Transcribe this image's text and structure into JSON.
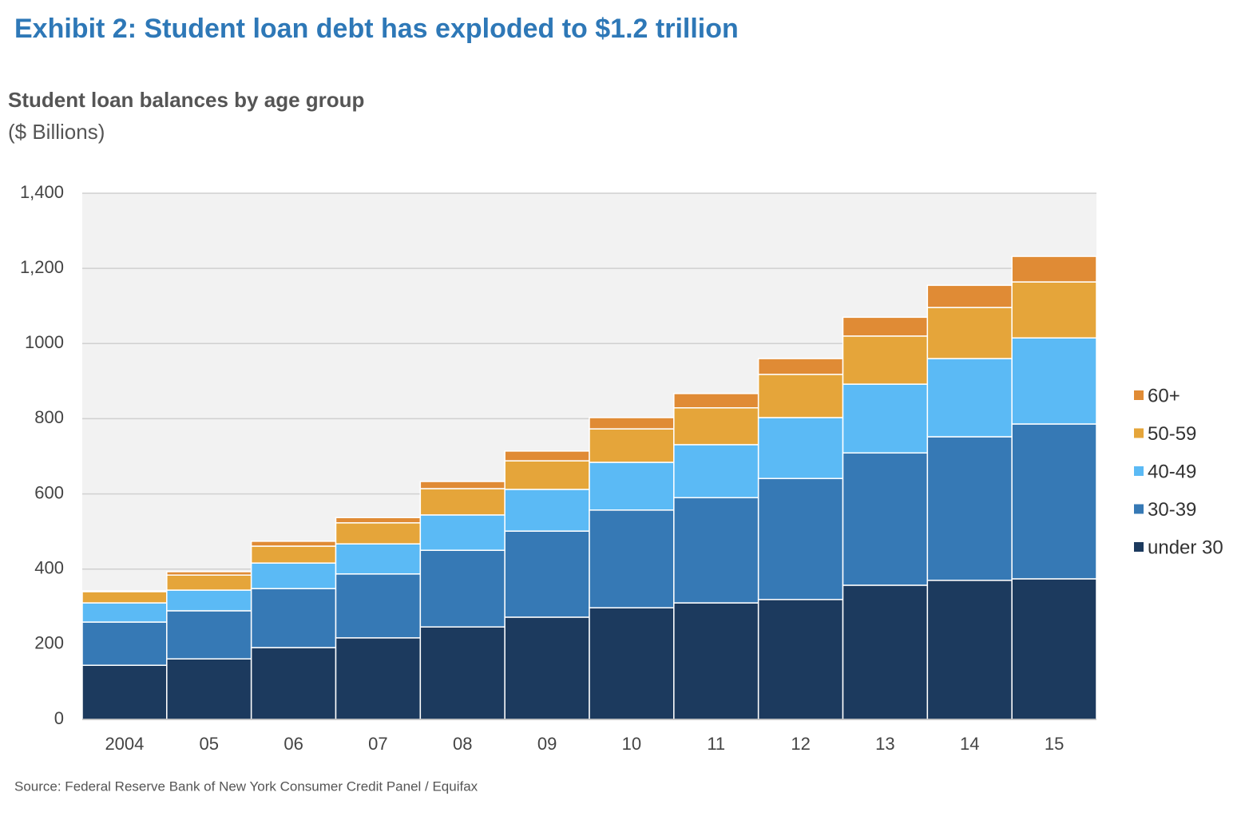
{
  "chart_data": {
    "type": "stacked-bar",
    "title": "Exhibit 2: Student loan debt has exploded to $1.2 trillion",
    "subtitle": "Student loan balances by age group",
    "y_label": "($ Billions)",
    "source": "Source: Federal Reserve Bank of New York Consumer Credit Panel / Equifax",
    "categories": [
      "2004",
      "05",
      "06",
      "07",
      "08",
      "09",
      "10",
      "11",
      "12",
      "13",
      "14",
      "15"
    ],
    "series": [
      {
        "name": "under 30",
        "color": "#1c3a5e",
        "values": [
          144,
          161,
          191,
          217,
          246,
          272,
          297,
          310,
          319,
          357,
          370,
          374
        ]
      },
      {
        "name": "30-39",
        "color": "#3679b5",
        "values": [
          115,
          128,
          157,
          170,
          204,
          229,
          260,
          280,
          322,
          352,
          382,
          412
        ]
      },
      {
        "name": "40-49",
        "color": "#5bbaf5",
        "values": [
          51,
          55,
          68,
          80,
          94,
          111,
          127,
          141,
          162,
          183,
          208,
          229
        ]
      },
      {
        "name": "50-59",
        "color": "#e5a53a",
        "values": [
          30,
          40,
          45,
          56,
          70,
          76,
          89,
          98,
          115,
          128,
          136,
          149
        ]
      },
      {
        "name": "60+",
        "color": "#e08b35",
        "values": [
          2,
          9,
          13,
          14,
          19,
          26,
          30,
          38,
          42,
          50,
          59,
          68
        ]
      }
    ],
    "ylim": [
      0,
      1400
    ],
    "yticks": [
      0,
      200,
      400,
      600,
      800,
      1000,
      {
        "value": 1200,
        "label": "1,200"
      },
      {
        "value": 1400,
        "label": "1,400"
      }
    ],
    "grid": true,
    "legend": "right"
  }
}
